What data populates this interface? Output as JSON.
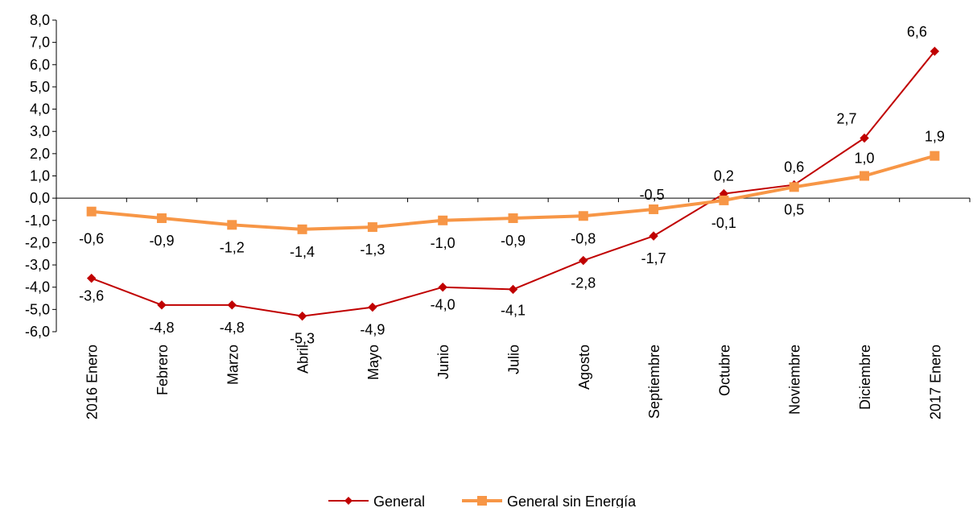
{
  "chart_data": {
    "type": "line",
    "categories": [
      "2016 Enero",
      "Febrero",
      "Marzo",
      "Abril",
      "Mayo",
      "Junio",
      "Julio",
      "Agosto",
      "Septiembre",
      "Octubre",
      "Noviembre",
      "Diciembre",
      "2017 Enero"
    ],
    "series": [
      {
        "name": "General",
        "color": "#c00000",
        "marker": "diamond",
        "values": [
          -3.6,
          -4.8,
          -4.8,
          -5.3,
          -4.9,
          -4.0,
          -4.1,
          -2.8,
          -1.7,
          0.2,
          0.6,
          2.7,
          6.6
        ],
        "labels": [
          "-3,6",
          "-4,8",
          "-4,8",
          "-5,3",
          "-4,9",
          "-4,0",
          "-4,1",
          "-2,8",
          "-1,7",
          "0,2",
          "0,6",
          "2,7",
          "6,6"
        ]
      },
      {
        "name": "General sin Energía",
        "color": "#f79646",
        "marker": "square",
        "values": [
          -0.6,
          -0.9,
          -1.2,
          -1.4,
          -1.3,
          -1.0,
          -0.9,
          -0.8,
          -0.5,
          -0.1,
          0.5,
          1.0,
          1.9
        ],
        "labels": [
          "-0,6",
          "-0,9",
          "-1,2",
          "-1,4",
          "-1,3",
          "-1,0",
          "-0,9",
          "-0,8",
          "-0,5",
          "-0,1",
          "0,5",
          "1,0",
          "1,9"
        ]
      }
    ],
    "ylim": [
      -6,
      8
    ],
    "yticks": [
      8,
      7,
      6,
      5,
      4,
      3,
      2,
      1,
      0,
      -1,
      -2,
      -3,
      -4,
      -5,
      -6
    ],
    "ytick_labels": [
      "8,0",
      "7,0",
      "6,0",
      "5,0",
      "4,0",
      "3,0",
      "2,0",
      "1,0",
      "0,0",
      "-1,0",
      "-2,0",
      "-3,0",
      "-4,0",
      "-5,0",
      "-6,0"
    ],
    "grid": false,
    "legend_position": "bottom",
    "title": "",
    "xlabel": "",
    "ylabel": ""
  }
}
